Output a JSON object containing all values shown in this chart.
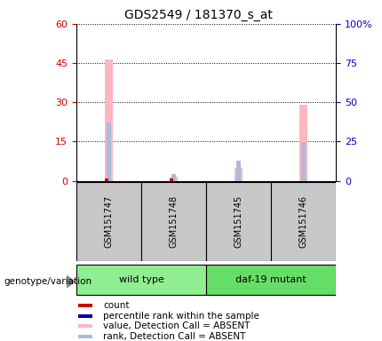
{
  "title": "GDS2549 / 181370_s_at",
  "samples": [
    "GSM151747",
    "GSM151748",
    "GSM151745",
    "GSM151746"
  ],
  "group_labels": [
    "wild type",
    "daf-19 mutant"
  ],
  "group_label_colors": [
    "#90EE90",
    "#66DD66"
  ],
  "bar_positions": [
    0,
    1,
    2,
    3
  ],
  "value_absent": [
    46.5,
    1.5,
    5.0,
    29.0
  ],
  "rank_absent_pct": [
    37.0,
    4.0,
    13.0,
    24.5
  ],
  "count_val": [
    1.0,
    1.0,
    0,
    0
  ],
  "rank_val_pct": [
    0,
    0,
    0,
    0
  ],
  "left_yticks": [
    0,
    15,
    30,
    45,
    60
  ],
  "right_yticks": [
    0,
    25,
    50,
    75,
    100
  ],
  "left_ylim": [
    0,
    60
  ],
  "right_ylim": [
    0,
    100
  ],
  "color_value_absent": "#FFB6C1",
  "color_rank_absent": "#AABBDD",
  "color_count": "#CC0000",
  "color_rank": "#000099",
  "legend_items": [
    {
      "label": "count",
      "color": "#CC0000"
    },
    {
      "label": "percentile rank within the sample",
      "color": "#000099"
    },
    {
      "label": "value, Detection Call = ABSENT",
      "color": "#FFB6C1"
    },
    {
      "label": "rank, Detection Call = ABSENT",
      "color": "#AABBDD"
    }
  ],
  "left_tick_color": "#CC0000",
  "right_tick_color": "#0000CC",
  "sample_box_color": "#C8C8C8",
  "annotation_label": "genotype/variation"
}
